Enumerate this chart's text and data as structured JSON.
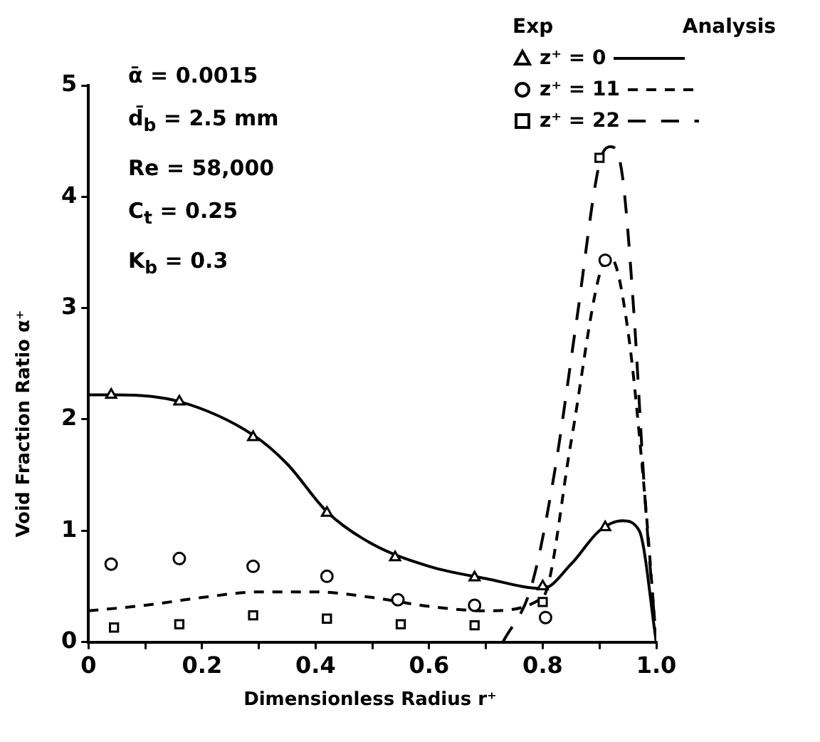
{
  "chart_data": {
    "type": "line",
    "xlabel": "Dimensionless Radius r⁺",
    "ylabel": "Void Fraction Ratio α⁺",
    "xlim": [
      0,
      1.0
    ],
    "xticks": [
      0,
      {
        "value": 0.1,
        "label": null
      },
      {
        "value": 0.2,
        "label": "0.2"
      },
      {
        "value": 0.3,
        "label": null
      },
      {
        "value": 0.4,
        "label": "0.4"
      },
      {
        "value": 0.5,
        "label": null
      },
      {
        "value": 0.6,
        "label": "0.6"
      },
      {
        "value": 0.7,
        "label": null
      },
      {
        "value": 0.8,
        "label": "0.8"
      },
      {
        "value": 0.9,
        "label": null
      },
      {
        "value": 1.0,
        "label": "1.0"
      }
    ],
    "ylim": [
      0,
      5
    ],
    "yticks": [
      0,
      1,
      2,
      3,
      4,
      5
    ],
    "grid": false,
    "legend": "top right",
    "annotations": [
      "ᾱ = 0.0015",
      "d̄$_{b}$ = 2.5 mm",
      "Re = 58,000",
      "C$_{t}$ = 0.25",
      "K$_{b}$ = 0.3",
      "Exp",
      "Analysis"
    ],
    "series": [
      {
        "name": "z⁺ = 0",
        "type": "scatter",
        "marker": "triangle",
        "color": "#000000",
        "x": [
          0.04,
          0.16,
          0.29,
          0.42,
          0.54,
          0.68,
          0.8,
          0.91
        ],
        "values": [
          2.22,
          2.16,
          1.84,
          1.16,
          0.76,
          0.58,
          0.5,
          1.03
        ]
      },
      {
        "name": "z⁺ = 11",
        "type": "scatter",
        "marker": "circle",
        "color": "#000000",
        "x": [
          0.04,
          0.16,
          0.29,
          0.42,
          0.545,
          0.68,
          0.805,
          0.91
        ],
        "values": [
          0.7,
          0.75,
          0.68,
          0.59,
          0.38,
          0.33,
          0.22,
          3.43
        ]
      },
      {
        "name": "z⁺ = 22",
        "type": "scatter",
        "marker": "square",
        "color": "#000000",
        "x": [
          0.045,
          0.16,
          0.29,
          0.42,
          0.55,
          0.68,
          0.8,
          0.9
        ],
        "values": [
          0.13,
          0.16,
          0.24,
          0.21,
          0.16,
          0.15,
          0.36,
          4.35
        ]
      },
      {
        "type": "line",
        "line_style": "solid",
        "color": "#000000",
        "x": [
          0,
          0.05,
          0.16,
          0.29,
          0.35,
          0.42,
          0.5,
          0.6,
          0.7,
          0.8,
          0.85,
          0.9,
          0.94,
          0.97,
          1.0
        ],
        "values": [
          2.22,
          2.22,
          2.16,
          1.86,
          1.6,
          1.17,
          0.88,
          0.68,
          0.57,
          0.48,
          0.7,
          1.0,
          1.09,
          1.0,
          0
        ]
      },
      {
        "type": "line",
        "line_style": "dashed",
        "color": "#000000",
        "x": [
          0,
          0.1,
          0.2,
          0.3,
          0.4,
          0.5,
          0.6,
          0.7,
          0.8,
          0.85,
          0.9,
          0.92,
          0.95,
          0.98,
          1.0
        ],
        "values": [
          0.28,
          0.33,
          0.4,
          0.45,
          0.45,
          0.4,
          0.32,
          0.28,
          0.4,
          1.8,
          3.3,
          3.45,
          2.8,
          1.3,
          0
        ]
      },
      {
        "type": "line",
        "line_style": "dashed",
        "color": "#000000",
        "x": [
          0.73,
          0.78,
          0.82,
          0.86,
          0.9,
          0.92,
          0.94,
          0.96,
          0.98,
          1.0
        ],
        "values": [
          0,
          0.5,
          1.5,
          2.9,
          4.3,
          4.45,
          4.2,
          3.0,
          1.3,
          0
        ]
      }
    ]
  }
}
